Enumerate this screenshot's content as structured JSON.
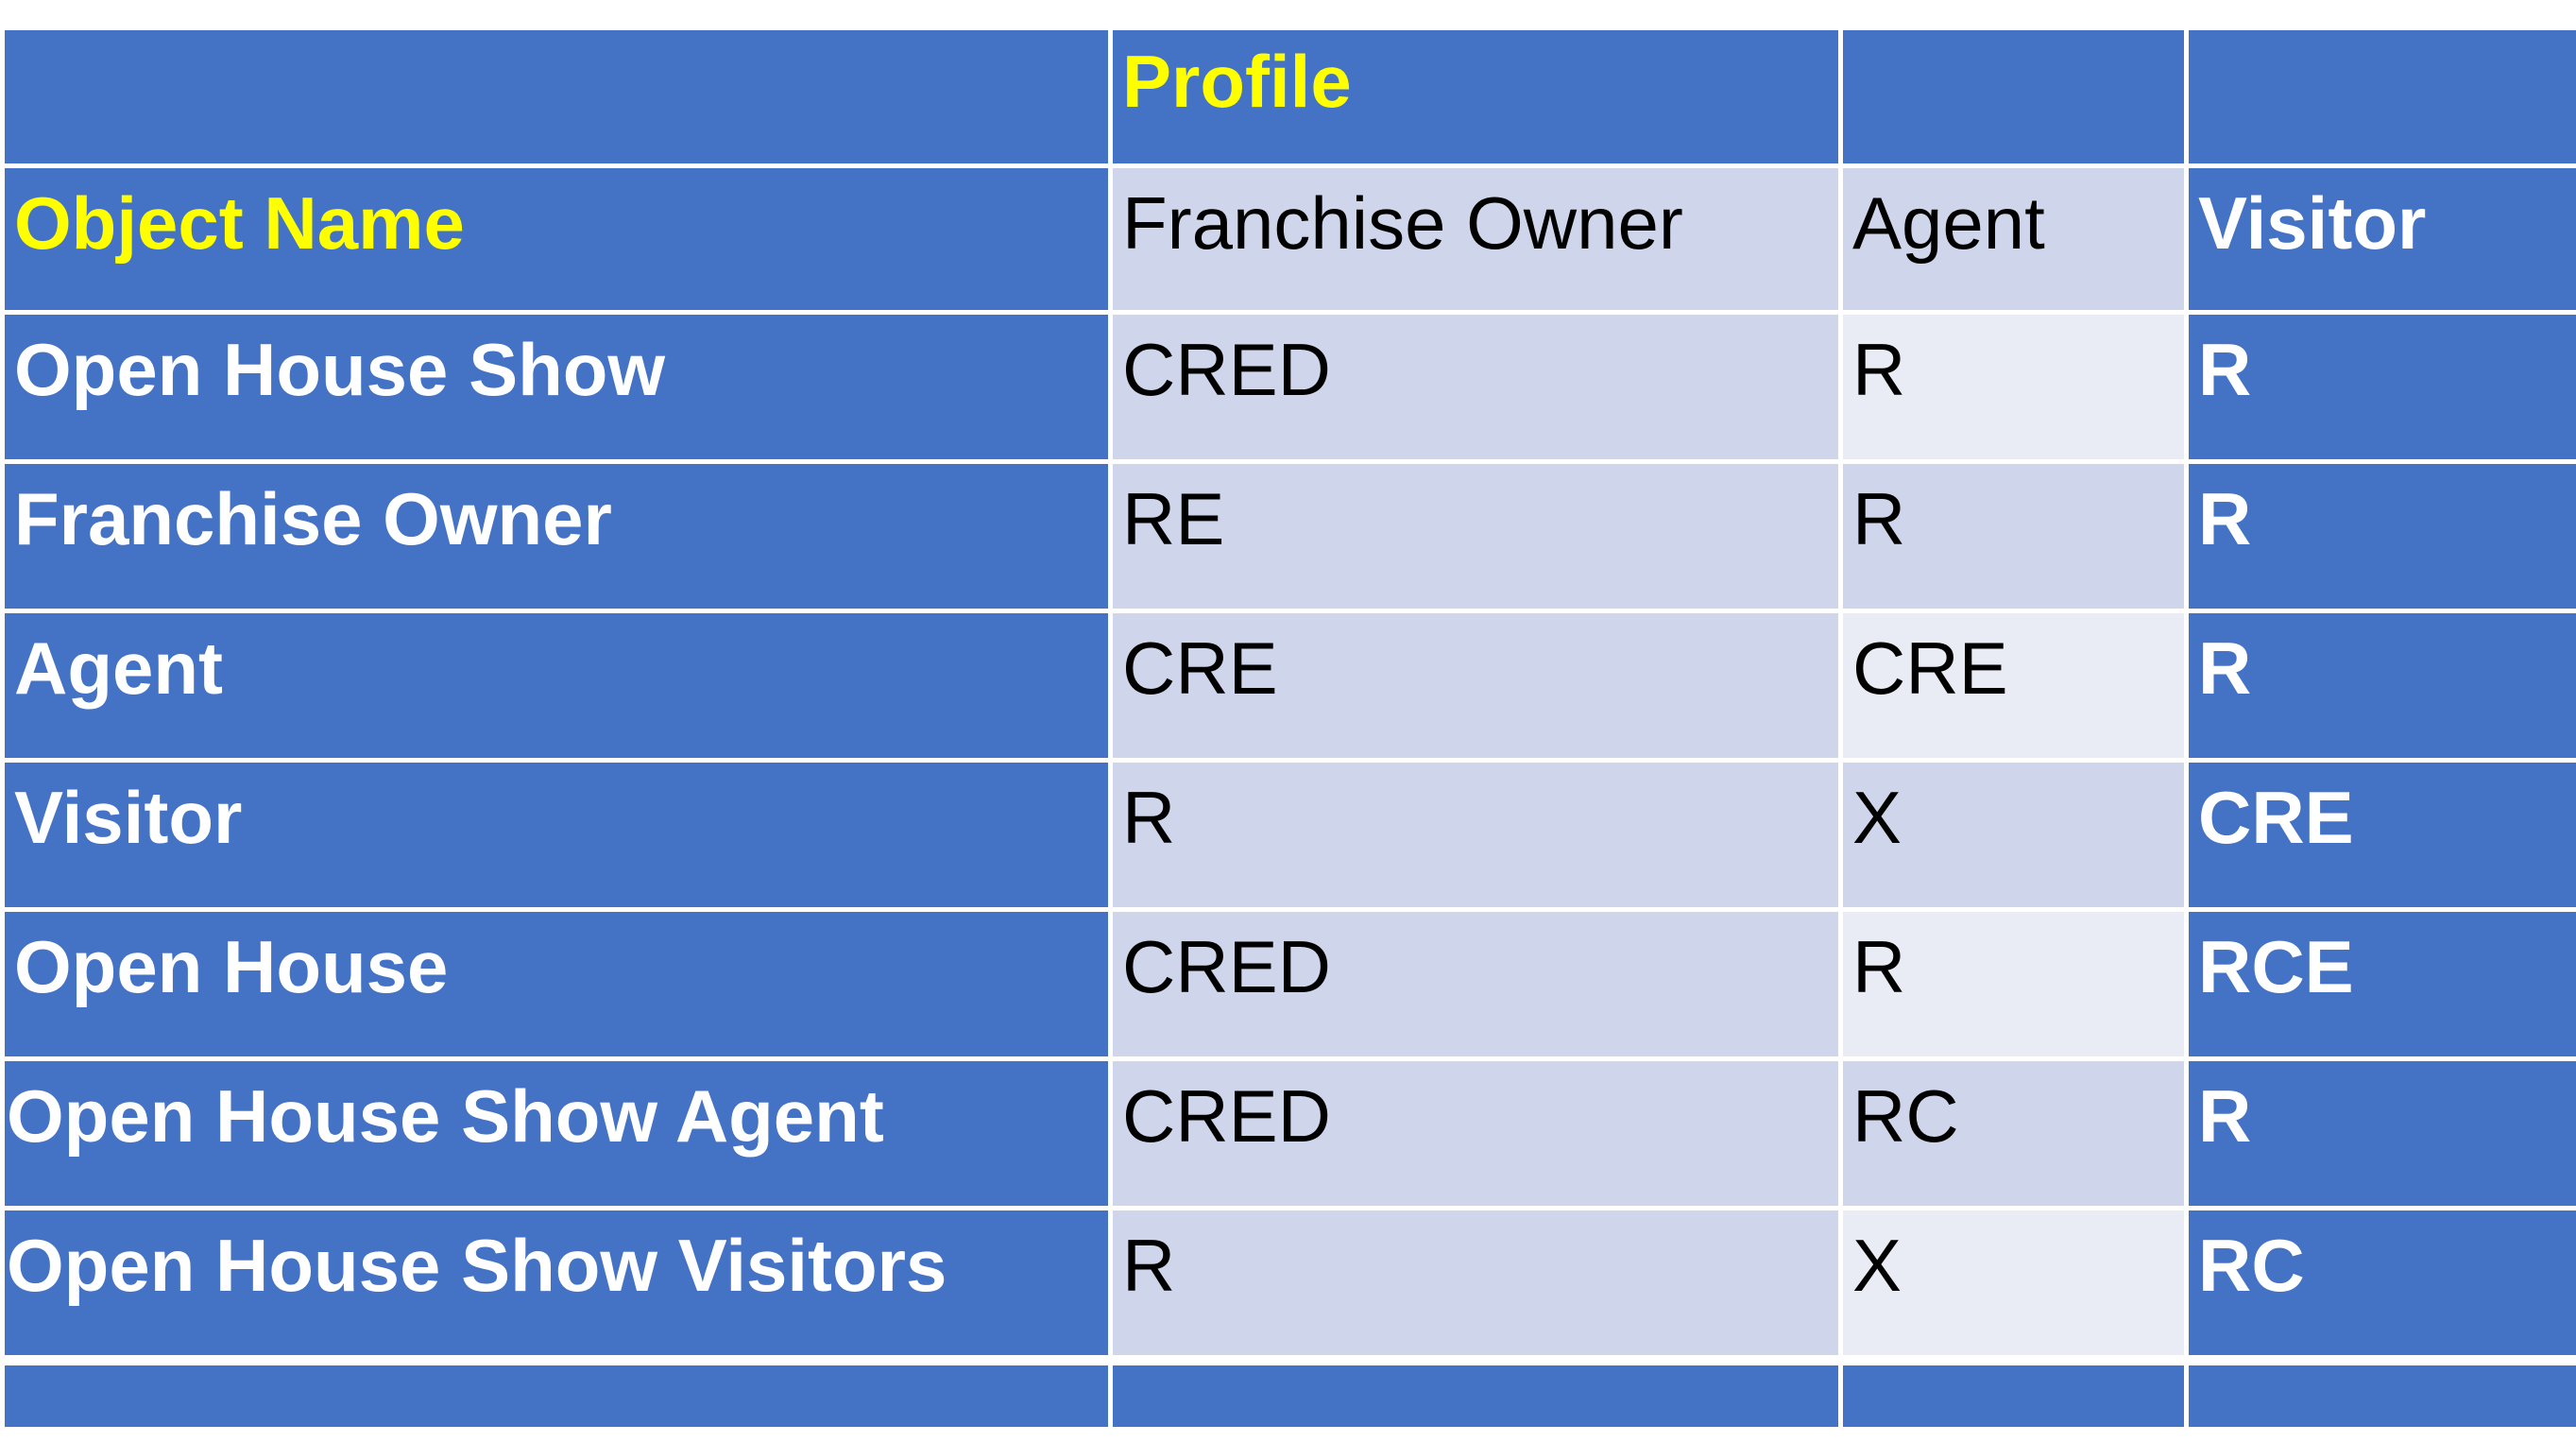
{
  "table": {
    "super_header": {
      "label": "Profile",
      "text_color": "#ffff00"
    },
    "column_header_label": "Object Name",
    "columns": [
      "Franchise Owner",
      "Agent",
      "Visitor"
    ],
    "rows": [
      {
        "object": "Open House Show",
        "values": [
          "CRED",
          "R",
          "R"
        ]
      },
      {
        "object": "Franchise Owner",
        "values": [
          "RE",
          "R",
          "R"
        ]
      },
      {
        "object": "Agent",
        "values": [
          "CRE",
          "CRE",
          "R"
        ]
      },
      {
        "object": "Visitor",
        "values": [
          "R",
          "X",
          "CRE"
        ]
      },
      {
        "object": "Open House",
        "values": [
          "CRED",
          "R",
          "RCE"
        ]
      },
      {
        "object": "Open House Show Agent",
        "values": [
          "CRED",
          "RC",
          "R"
        ]
      },
      {
        "object": "Open House Show Visitors",
        "values": [
          "R",
          "X",
          "RC"
        ]
      }
    ]
  },
  "colors": {
    "header_blue": "#4472c4",
    "highlight_yellow": "#ffff00",
    "band_dark": "#cfd5ea",
    "band_light": "#e9ebf5"
  }
}
